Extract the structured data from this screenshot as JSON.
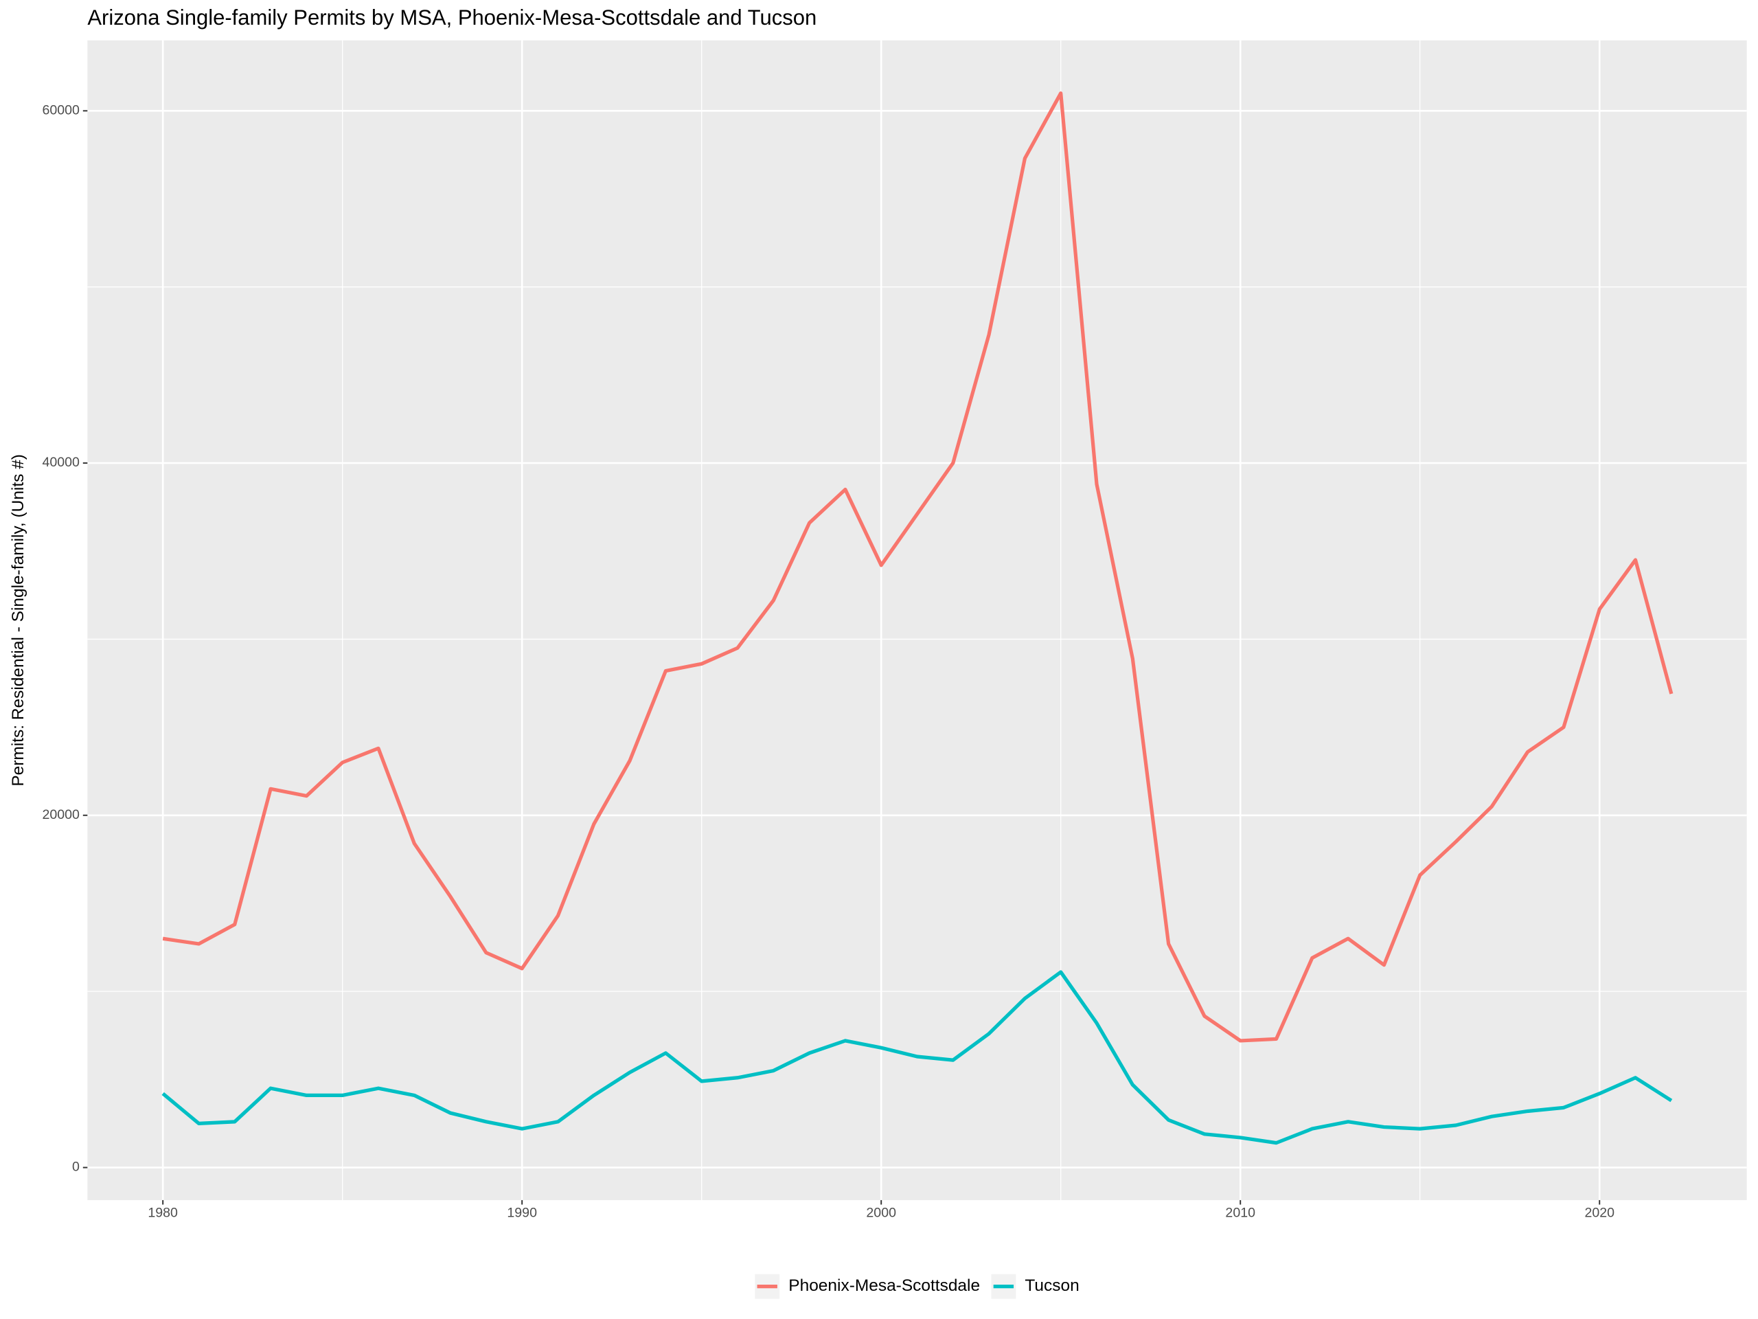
{
  "chart_data": {
    "type": "line",
    "title": "Arizona Single-family Permits by MSA, Phoenix-Mesa-Scottsdale and Tucson",
    "ylabel": "Permits: Residential - Single-family, (Units #)",
    "x": [
      1980,
      1981,
      1982,
      1983,
      1984,
      1985,
      1986,
      1987,
      1988,
      1989,
      1990,
      1991,
      1992,
      1993,
      1994,
      1995,
      1996,
      1997,
      1998,
      1999,
      2000,
      2001,
      2002,
      2003,
      2004,
      2005,
      2006,
      2007,
      2008,
      2009,
      2010,
      2011,
      2012,
      2013,
      2014,
      2015,
      2016,
      2017,
      2018,
      2019,
      2020,
      2021,
      2022
    ],
    "series": [
      {
        "name": "Phoenix-Mesa-Scottsdale",
        "color": "#f8766d",
        "values": [
          13000,
          12700,
          13800,
          21500,
          21100,
          23000,
          23800,
          18400,
          15400,
          12200,
          11300,
          14300,
          19500,
          23100,
          28200,
          28600,
          29500,
          32200,
          36600,
          38500,
          34200,
          37100,
          40000,
          47300,
          57300,
          61000,
          38800,
          28900,
          12700,
          8600,
          7200,
          7300,
          11900,
          13000,
          11500,
          16600,
          18500,
          20500,
          23600,
          25000,
          31700,
          34500,
          26900
        ]
      },
      {
        "name": "Tucson",
        "color": "#00bfc4",
        "values": [
          4200,
          2500,
          2600,
          4500,
          4100,
          4100,
          4500,
          4100,
          3100,
          2600,
          2200,
          2600,
          4100,
          5400,
          6500,
          4900,
          5100,
          5500,
          6500,
          7200,
          6800,
          6300,
          6100,
          7600,
          9600,
          11100,
          8200,
          4700,
          2700,
          1900,
          1700,
          1400,
          2200,
          2600,
          2300,
          2200,
          2400,
          2900,
          3200,
          3400,
          4200,
          5100,
          3800
        ]
      }
    ],
    "xlim": [
      1977.9,
      2024.1
    ],
    "xticks": [
      1980,
      1990,
      2000,
      2010,
      2020
    ],
    "xminor": [
      1985,
      1995,
      2005,
      2015
    ],
    "ylim": [
      -1850,
      64000
    ],
    "yticks": [
      0,
      20000,
      40000,
      60000
    ],
    "yminor": [
      10000,
      30000,
      50000
    ],
    "grid": true,
    "legend": "bottom"
  }
}
